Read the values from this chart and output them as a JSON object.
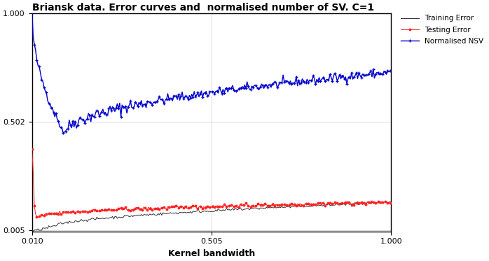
{
  "title": "Briansk data. Error curves and  normalised number of SV. C=1",
  "xlabel": "Kernel bandwidth",
  "x_min": 0.01,
  "x_max": 1.0,
  "y_min": 0.0,
  "y_max": 1.0,
  "yticks": [
    0.005,
    0.502,
    1.0
  ],
  "xticks": [
    0.01,
    0.505,
    1.0
  ],
  "grid_color": "#cccccc",
  "bg_color": "#ffffff",
  "training_color": "#333333",
  "testing_color": "#ff2222",
  "nsv_color": "#0000cc",
  "legend_labels": [
    "Training Error",
    "Testing Error",
    "Normalised NSV"
  ]
}
